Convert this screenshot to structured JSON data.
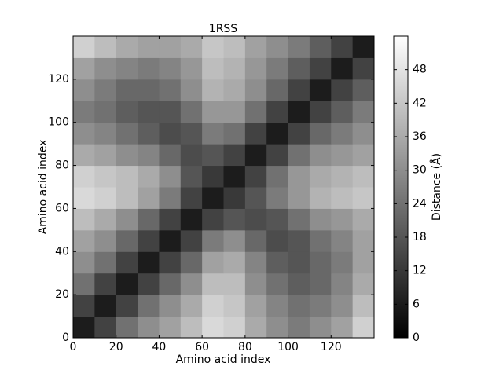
{
  "chart_data": {
    "type": "heatmap",
    "title": "1RSS",
    "x_label": "Amino acid index",
    "y_label": "Amino acid index",
    "xbins": [
      0,
      10,
      20,
      30,
      40,
      50,
      60,
      70,
      80,
      90,
      100,
      110,
      120,
      130,
      140
    ],
    "ybins": [
      0,
      10,
      20,
      30,
      40,
      50,
      60,
      70,
      80,
      90,
      100,
      110,
      120,
      130,
      140
    ],
    "values": [
      [
        6,
        14,
        24,
        30,
        34,
        40,
        46,
        44,
        36,
        30,
        26,
        30,
        34,
        44
      ],
      [
        14,
        6,
        14,
        24,
        30,
        36,
        44,
        42,
        34,
        28,
        24,
        26,
        30,
        40
      ],
      [
        24,
        14,
        6,
        14,
        22,
        30,
        40,
        40,
        30,
        24,
        20,
        22,
        28,
        36
      ],
      [
        30,
        24,
        14,
        6,
        14,
        22,
        34,
        36,
        28,
        20,
        18,
        22,
        26,
        34
      ],
      [
        34,
        30,
        22,
        14,
        6,
        14,
        26,
        30,
        22,
        16,
        18,
        24,
        28,
        34
      ],
      [
        40,
        36,
        30,
        22,
        14,
        6,
        14,
        18,
        16,
        18,
        24,
        30,
        32,
        36
      ],
      [
        46,
        44,
        40,
        34,
        26,
        14,
        6,
        12,
        18,
        26,
        32,
        38,
        40,
        42
      ],
      [
        44,
        42,
        40,
        36,
        30,
        18,
        12,
        6,
        14,
        24,
        32,
        36,
        38,
        40
      ],
      [
        36,
        34,
        30,
        28,
        22,
        16,
        18,
        14,
        6,
        14,
        24,
        30,
        32,
        34
      ],
      [
        30,
        28,
        24,
        20,
        16,
        18,
        26,
        24,
        14,
        6,
        14,
        22,
        26,
        30
      ],
      [
        26,
        24,
        20,
        18,
        18,
        24,
        32,
        32,
        24,
        14,
        6,
        14,
        20,
        26
      ],
      [
        30,
        26,
        22,
        22,
        24,
        30,
        38,
        36,
        30,
        22,
        14,
        6,
        14,
        20
      ],
      [
        34,
        30,
        28,
        26,
        28,
        32,
        40,
        38,
        32,
        26,
        20,
        14,
        6,
        14
      ],
      [
        44,
        40,
        36,
        34,
        34,
        36,
        42,
        40,
        34,
        30,
        26,
        20,
        14,
        6
      ]
    ],
    "xlim": [
      0,
      140
    ],
    "ylim": [
      0,
      140
    ],
    "xticks": [
      0,
      20,
      40,
      60,
      80,
      100,
      120
    ],
    "yticks": [
      0,
      20,
      40,
      60,
      80,
      100,
      120
    ],
    "colormap": "gray",
    "colorbar_label": "Distance (Å)",
    "clim": [
      0,
      54
    ],
    "colorbar_ticks": [
      0,
      6,
      12,
      18,
      24,
      30,
      36,
      42,
      48
    ]
  }
}
